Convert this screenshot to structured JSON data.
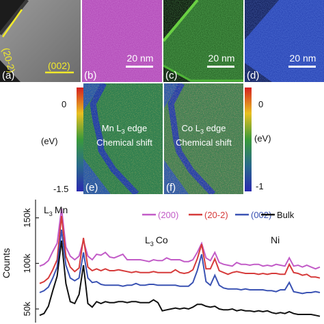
{
  "top_panels": {
    "a": {
      "label": "(a)",
      "annotation_1": "(20-2)",
      "annotation_2": "(002)"
    },
    "b": {
      "label": "(b)",
      "scalebar": "20 nm",
      "color": "#c54fd0"
    },
    "c": {
      "label": "(c)",
      "scalebar": "20 nm",
      "color": "#2c7a2b"
    },
    "d": {
      "label": "(d)",
      "scalebar": "20 nm",
      "color": "#2c4fc4"
    }
  },
  "mid_panels": {
    "e": {
      "label": "(e)",
      "element": "Mn L",
      "sub": "3",
      "edge": " edge",
      "line2": "Chemical shift",
      "cb_top": "0",
      "cb_unit": "(eV)",
      "cb_bottom": "-1.5"
    },
    "f": {
      "label": "(f)",
      "element": "Co L",
      "sub": "3",
      "edge": " edge",
      "line2": "Chemical shift",
      "cb_top": "0",
      "cb_unit": "(eV)",
      "cb_bottom": "-1"
    }
  },
  "chart_data": {
    "type": "line",
    "ylabel": "Counts",
    "ytick_labels": [
      "150k",
      "100k",
      "50k"
    ],
    "y_ticks": [
      150000,
      100000,
      50000
    ],
    "ylim": [
      35000,
      170000
    ],
    "annotations": {
      "mn_L": "L",
      "mn_sub": "3",
      "mn": "Mn",
      "co_L": "L",
      "co_sub": "3",
      "co": "Co",
      "ni": "Ni"
    },
    "legend": {
      "placement": "top-right"
    },
    "series": [
      {
        "name": "(200)",
        "color": "#c25bc7",
        "y": [
          97,
          99,
          103,
          113,
          122,
          160,
          118,
          108,
          104,
          108,
          125,
          108,
          104,
          110,
          109,
          112,
          107,
          106,
          108,
          110,
          104,
          104,
          104,
          104,
          103,
          102,
          104,
          103,
          103,
          106,
          104,
          104,
          104,
          102,
          102,
          104,
          112,
          122,
          106,
          103,
          112,
          101,
          99,
          98,
          97,
          101,
          99,
          99,
          98,
          99,
          99,
          97,
          98,
          97,
          99,
          98,
          97,
          106,
          97,
          98,
          96,
          98,
          96,
          94,
          96
        ]
      },
      {
        "name": "(20-2)",
        "color": "#d63a3a",
        "y": [
          78,
          80,
          84,
          93,
          104,
          152,
          108,
          96,
          91,
          95,
          128,
          96,
          92,
          94,
          92,
          94,
          92,
          92,
          93,
          92,
          91,
          90,
          91,
          90,
          90,
          90,
          91,
          90,
          90,
          90,
          90,
          93,
          90,
          89,
          90,
          93,
          105,
          121,
          94,
          94,
          105,
          92,
          90,
          88,
          90,
          91,
          90,
          89,
          89,
          89,
          88,
          89,
          88,
          89,
          89,
          88,
          88,
          99,
          90,
          89,
          87,
          88,
          85,
          85,
          84
        ]
      },
      {
        "name": "(002)",
        "color": "#3a52b3",
        "y": [
          68,
          70,
          74,
          84,
          96,
          137,
          98,
          84,
          81,
          84,
          112,
          84,
          79,
          80,
          77,
          76,
          76,
          76,
          76,
          75,
          76,
          76,
          78,
          76,
          76,
          77,
          77,
          76,
          76,
          76,
          76,
          76,
          75,
          75,
          75,
          79,
          92,
          110,
          80,
          76,
          87,
          76,
          73,
          72,
          72,
          72,
          71,
          72,
          71,
          71,
          71,
          71,
          70,
          70,
          69,
          71,
          71,
          79,
          69,
          68,
          67,
          68,
          68,
          69,
          68
        ]
      },
      {
        "name": "Bulk",
        "color": "#111111",
        "y": [
          43,
          45,
          53,
          70,
          86,
          125,
          78,
          58,
          56,
          66,
          98,
          56,
          52,
          58,
          56,
          58,
          57,
          57,
          58,
          58,
          57,
          58,
          58,
          57,
          57,
          57,
          60,
          57,
          48,
          49,
          50,
          51,
          50,
          51,
          50,
          52,
          55,
          55,
          53,
          52,
          53,
          50,
          49,
          49,
          50,
          48,
          49,
          48,
          48,
          47,
          48,
          47,
          48,
          46,
          45,
          46,
          45,
          47,
          45,
          44,
          44,
          44,
          44,
          43,
          42
        ]
      }
    ]
  }
}
